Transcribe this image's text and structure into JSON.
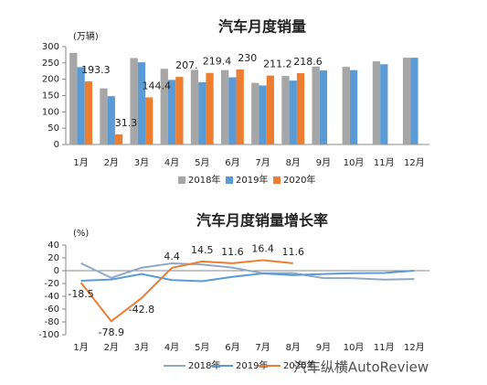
{
  "chart_data": [
    {
      "type": "bar",
      "title": "汽车月度销量",
      "y_unit_label": "(万辆)",
      "categories": [
        "1月",
        "2月",
        "3月",
        "4月",
        "5月",
        "6月",
        "7月",
        "8月",
        "9月",
        "10月",
        "11月",
        "12月"
      ],
      "series": [
        {
          "name": "2018年",
          "color": "#a6a6a6",
          "values": [
            281,
            172,
            265,
            232,
            229,
            228,
            189,
            210,
            239,
            238,
            255,
            266
          ]
        },
        {
          "name": "2019年",
          "color": "#5b9bd5",
          "values": [
            237,
            148,
            252,
            198,
            191,
            206,
            181,
            196,
            227,
            228,
            246,
            266
          ]
        },
        {
          "name": "2020年",
          "color": "#ed7d31",
          "values": [
            193.3,
            31.3,
            144.4,
            207.1,
            219.4,
            230,
            211.2,
            218.6,
            null,
            null,
            null,
            null
          ],
          "value_labels": [
            "193.3",
            "31.3",
            "144.4",
            "207.",
            "219.4",
            "230",
            "211.2",
            "218.6",
            null,
            null,
            null,
            null
          ]
        }
      ],
      "ylim": [
        0,
        300
      ],
      "yticks": [
        0,
        50,
        100,
        150,
        200,
        250,
        300
      ],
      "legend": "bottom"
    },
    {
      "type": "line",
      "title": "汽车月度销量增长率",
      "y_unit_label": "(%)",
      "categories": [
        "1月",
        "2月",
        "3月",
        "4月",
        "5月",
        "6月",
        "7月",
        "8月",
        "9月",
        "10月",
        "11月",
        "12月"
      ],
      "series": [
        {
          "name": "2018年",
          "color": "#8faac8",
          "values": [
            11.6,
            -11.1,
            4.7,
            11.5,
            9.6,
            4.8,
            -4.0,
            -3.8,
            -11.6,
            -11.7,
            -13.9,
            -13.0
          ]
        },
        {
          "name": "2019年",
          "color": "#5b9bd5",
          "values": [
            -15.8,
            -13.8,
            -5.2,
            -14.6,
            -16.4,
            -9.6,
            -4.3,
            -6.9,
            -5.2,
            -4.0,
            -3.6,
            0
          ]
        },
        {
          "name": "2020年",
          "color": "#ed7d31",
          "values": [
            -18.5,
            -78.9,
            -42.8,
            4.4,
            14.5,
            11.6,
            16.4,
            11.6,
            null,
            null,
            null,
            null
          ],
          "show_values": true
        }
      ],
      "ylim": [
        -100,
        40
      ],
      "yticks": [
        -100,
        -80,
        -60,
        -40,
        -20,
        0,
        20,
        40
      ],
      "legend": "bottom"
    }
  ],
  "watermark": "汽车纵横AutoReview"
}
